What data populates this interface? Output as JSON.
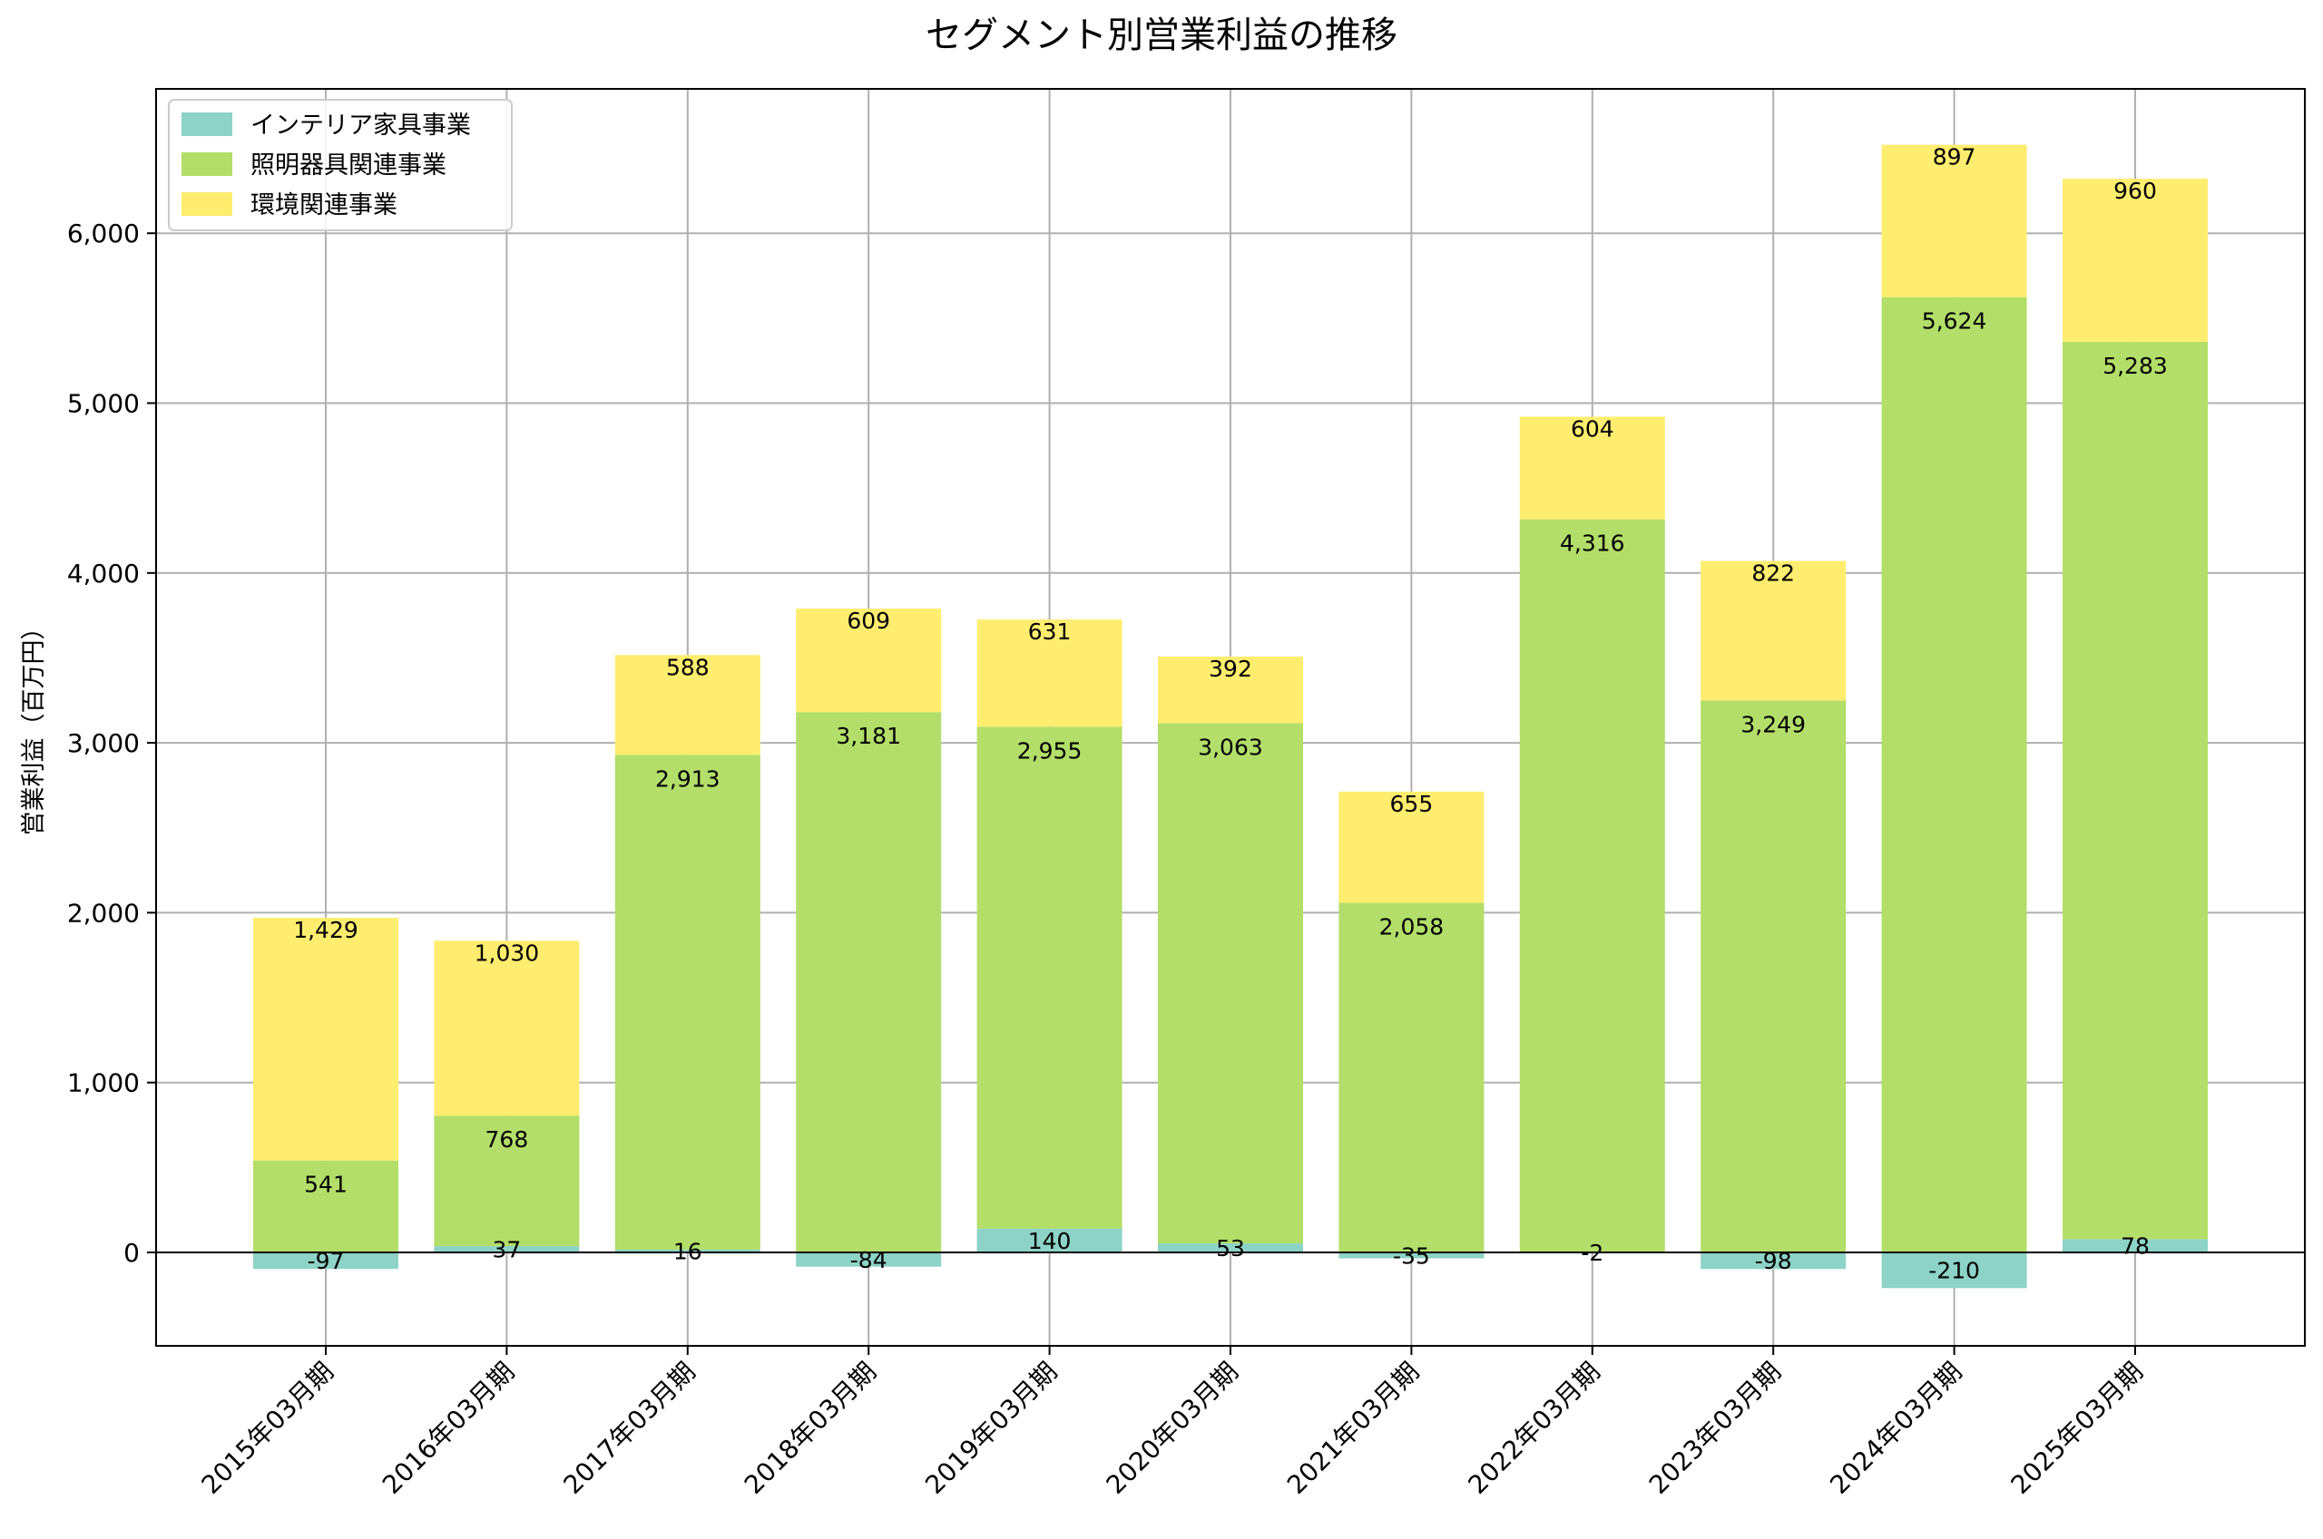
{
  "chart_data": {
    "type": "bar",
    "stacked": true,
    "title": "セグメント別営業利益の推移",
    "xlabel": "",
    "ylabel": "営業利益（百万円）",
    "ylim": [
      -550,
      6850
    ],
    "yticks": [
      0,
      1000,
      2000,
      3000,
      4000,
      5000,
      6000
    ],
    "ytick_labels": [
      "0",
      "1,000",
      "2,000",
      "3,000",
      "4,000",
      "5,000",
      "6,000"
    ],
    "grid": true,
    "legend_position": "top-left",
    "categories": [
      "2015年03月期",
      "2016年03月期",
      "2017年03月期",
      "2018年03月期",
      "2019年03月期",
      "2020年03月期",
      "2021年03月期",
      "2022年03月期",
      "2023年03月期",
      "2024年03月期",
      "2025年03月期"
    ],
    "series": [
      {
        "name": "インテリア家具事業",
        "color": "#8dd3c7",
        "values": [
          -97,
          37,
          16,
          -84,
          140,
          53,
          -35,
          -2,
          -98,
          -210,
          78
        ],
        "labels": [
          "-97",
          "37",
          "16",
          "-84",
          "140",
          "53",
          "-35",
          "-2",
          "-98",
          "-210",
          "78"
        ]
      },
      {
        "name": "照明器具関連事業",
        "color": "#b3de69",
        "values": [
          541,
          768,
          2913,
          3181,
          2955,
          3063,
          2058,
          4316,
          3249,
          5624,
          5283
        ],
        "labels": [
          "541",
          "768",
          "2,913",
          "3,181",
          "2,955",
          "3,063",
          "2,058",
          "4,316",
          "3,249",
          "5,624",
          "5,283"
        ]
      },
      {
        "name": "環境関連事業",
        "color": "#ffed6f",
        "values": [
          1429,
          1030,
          588,
          609,
          631,
          392,
          655,
          604,
          822,
          897,
          960
        ],
        "labels": [
          "1,429",
          "1,030",
          "588",
          "609",
          "631",
          "392",
          "655",
          "604",
          "822",
          "897",
          "960"
        ]
      }
    ]
  }
}
